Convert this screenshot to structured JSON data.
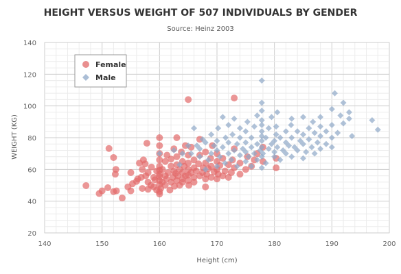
{
  "chart_data": {
    "type": "scatter",
    "title": "HEIGHT VERSUS WEIGHT OF 507 INDIVIDUALS BY GENDER",
    "subtitle": "Source: Heinz 2003",
    "xlabel": "Height (cm)",
    "ylabel": "WEIGHT (KG)",
    "xlim": [
      140,
      200
    ],
    "ylim": [
      20,
      140
    ],
    "x_ticks": [
      140,
      150,
      160,
      170,
      180,
      190,
      200
    ],
    "y_ticks": [
      20,
      40,
      60,
      80,
      100,
      120,
      140
    ],
    "grid": true,
    "legend_position": "top-left",
    "colors": {
      "Female": "#e26a6a",
      "Male": "#8fa8c8"
    },
    "series": [
      {
        "name": "Female",
        "marker": "circle",
        "points": [
          [
            147.2,
            49.8
          ],
          [
            149.5,
            44.8
          ],
          [
            150.0,
            46.5
          ],
          [
            151.0,
            48.5
          ],
          [
            151.2,
            73.2
          ],
          [
            152.0,
            46.0
          ],
          [
            152.3,
            57.0
          ],
          [
            152.4,
            60.0
          ],
          [
            152.0,
            67.5
          ],
          [
            152.5,
            46.5
          ],
          [
            153.5,
            42.0
          ],
          [
            154.5,
            49.0
          ],
          [
            155.0,
            46.5
          ],
          [
            155.0,
            58.0
          ],
          [
            155.3,
            51.0
          ],
          [
            156.0,
            52.5
          ],
          [
            156.2,
            54.0
          ],
          [
            156.5,
            64.0
          ],
          [
            156.8,
            55.0
          ],
          [
            157.0,
            60.0
          ],
          [
            157.0,
            48.0
          ],
          [
            157.2,
            66.0
          ],
          [
            157.5,
            63.5
          ],
          [
            157.6,
            56.0
          ],
          [
            157.8,
            76.5
          ],
          [
            158.0,
            47.5
          ],
          [
            158.0,
            52.0
          ],
          [
            158.0,
            58.0
          ],
          [
            158.5,
            50.0
          ],
          [
            158.6,
            61.5
          ],
          [
            159.0,
            55.0
          ],
          [
            159.0,
            49.0
          ],
          [
            159.2,
            53.5
          ],
          [
            159.5,
            59.0
          ],
          [
            159.5,
            47.0
          ],
          [
            160.0,
            46.0
          ],
          [
            160.0,
            50.5
          ],
          [
            160.0,
            53.0
          ],
          [
            160.0,
            55.5
          ],
          [
            160.0,
            57.0
          ],
          [
            160.0,
            59.5
          ],
          [
            160.0,
            62.0
          ],
          [
            160.0,
            66.0
          ],
          [
            160.0,
            44.5
          ],
          [
            160.0,
            70.0
          ],
          [
            160.0,
            75.0
          ],
          [
            160.0,
            80.0
          ],
          [
            160.2,
            48.0
          ],
          [
            160.5,
            52.0
          ],
          [
            160.5,
            60.0
          ],
          [
            161.0,
            56.0
          ],
          [
            161.0,
            65.0
          ],
          [
            161.0,
            50.0
          ],
          [
            161.2,
            54.0
          ],
          [
            161.3,
            69.0
          ],
          [
            161.5,
            58.0
          ],
          [
            161.8,
            47.0
          ],
          [
            162.0,
            52.0
          ],
          [
            162.0,
            62.0
          ],
          [
            162.0,
            66.5
          ],
          [
            162.3,
            55.0
          ],
          [
            162.5,
            59.0
          ],
          [
            162.5,
            73.0
          ],
          [
            162.6,
            49.5
          ],
          [
            162.8,
            57.5
          ],
          [
            163.0,
            53.0
          ],
          [
            163.0,
            63.0
          ],
          [
            163.0,
            68.0
          ],
          [
            163.0,
            80.0
          ],
          [
            163.2,
            56.0
          ],
          [
            163.5,
            50.0
          ],
          [
            163.5,
            60.0
          ],
          [
            163.8,
            71.0
          ],
          [
            164.0,
            54.0
          ],
          [
            164.0,
            58.0
          ],
          [
            164.0,
            65.0
          ],
          [
            164.0,
            52.0
          ],
          [
            164.3,
            62.0
          ],
          [
            164.5,
            56.0
          ],
          [
            164.5,
            75.0
          ],
          [
            165.0,
            53.0
          ],
          [
            165.0,
            56.5
          ],
          [
            165.0,
            60.0
          ],
          [
            165.0,
            64.0
          ],
          [
            165.0,
            69.0
          ],
          [
            165.0,
            104.0
          ],
          [
            165.1,
            50.0
          ],
          [
            165.5,
            58.0
          ],
          [
            165.5,
            74.0
          ],
          [
            166.0,
            55.0
          ],
          [
            166.0,
            61.0
          ],
          [
            166.0,
            66.0
          ],
          [
            166.0,
            52.0
          ],
          [
            166.4,
            59.0
          ],
          [
            166.8,
            63.5
          ],
          [
            167.0,
            56.0
          ],
          [
            167.0,
            69.0
          ],
          [
            167.0,
            79.0
          ],
          [
            167.5,
            58.0
          ],
          [
            167.6,
            61.0
          ],
          [
            168.0,
            54.0
          ],
          [
            168.0,
            64.0
          ],
          [
            168.0,
            71.0
          ],
          [
            168.0,
            49.0
          ],
          [
            168.2,
            57.0
          ],
          [
            168.5,
            60.5
          ],
          [
            168.9,
            67.0
          ],
          [
            169.0,
            55.0
          ],
          [
            169.0,
            62.0
          ],
          [
            169.2,
            75.0
          ],
          [
            169.5,
            58.5
          ],
          [
            170.0,
            54.0
          ],
          [
            170.0,
            60.0
          ],
          [
            170.0,
            65.0
          ],
          [
            170.0,
            70.0
          ],
          [
            170.2,
            57.0
          ],
          [
            170.5,
            62.5
          ],
          [
            171.0,
            56.0
          ],
          [
            171.0,
            67.0
          ],
          [
            171.4,
            59.0
          ],
          [
            172.0,
            55.0
          ],
          [
            172.0,
            63.0
          ],
          [
            172.5,
            58.0
          ],
          [
            172.7,
            66.0
          ],
          [
            173.0,
            73.0
          ],
          [
            173.0,
            61.0
          ],
          [
            173.0,
            105.0
          ],
          [
            174.0,
            57.0
          ],
          [
            174.0,
            64.0
          ],
          [
            175.0,
            60.0
          ],
          [
            175.3,
            68.0
          ],
          [
            176.0,
            62.0
          ],
          [
            176.5,
            66.0
          ],
          [
            177.0,
            70.0
          ],
          [
            178.0,
            74.0
          ],
          [
            178.0,
            65.0
          ],
          [
            180.3,
            67.0
          ],
          [
            180.3,
            61.0
          ]
        ]
      },
      {
        "name": "Male",
        "marker": "diamond",
        "points": [
          [
            160.0,
            70.0
          ],
          [
            162.5,
            72.0
          ],
          [
            163.5,
            63.0
          ],
          [
            164.0,
            70.0
          ],
          [
            165.0,
            75.0
          ],
          [
            165.5,
            70.0
          ],
          [
            166.0,
            86.0
          ],
          [
            166.5,
            75.0
          ],
          [
            167.0,
            68.0
          ],
          [
            167.0,
            73.0
          ],
          [
            167.5,
            79.0
          ],
          [
            168.0,
            60.0
          ],
          [
            168.0,
            77.0
          ],
          [
            168.5,
            66.0
          ],
          [
            169.0,
            70.0
          ],
          [
            169.0,
            82.0
          ],
          [
            169.5,
            75.0
          ],
          [
            170.0,
            62.0
          ],
          [
            170.0,
            72.0
          ],
          [
            170.0,
            78.0
          ],
          [
            170.2,
            86.0
          ],
          [
            170.5,
            68.0
          ],
          [
            171.0,
            74.0
          ],
          [
            171.0,
            93.0
          ],
          [
            171.4,
            64.0
          ],
          [
            171.5,
            80.0
          ],
          [
            172.0,
            70.0
          ],
          [
            172.0,
            77.0
          ],
          [
            172.0,
            88.0
          ],
          [
            172.5,
            66.0
          ],
          [
            172.7,
            82.0
          ],
          [
            173.0,
            72.0
          ],
          [
            173.0,
            92.0
          ],
          [
            173.5,
            62.0
          ],
          [
            173.5,
            76.0
          ],
          [
            174.0,
            69.0
          ],
          [
            174.0,
            80.0
          ],
          [
            174.0,
            86.0
          ],
          [
            174.5,
            73.0
          ],
          [
            175.0,
            65.0
          ],
          [
            175.0,
            71.0
          ],
          [
            175.0,
            77.0
          ],
          [
            175.0,
            84.0
          ],
          [
            175.3,
            90.0
          ],
          [
            175.5,
            68.0
          ],
          [
            176.0,
            62.0
          ],
          [
            176.0,
            74.0
          ],
          [
            176.0,
            80.0
          ],
          [
            176.5,
            70.0
          ],
          [
            176.5,
            87.0
          ],
          [
            177.0,
            66.0
          ],
          [
            177.0,
            76.0
          ],
          [
            177.0,
            94.0
          ],
          [
            177.5,
            72.0
          ],
          [
            177.8,
            61.0
          ],
          [
            177.8,
            68.0
          ],
          [
            177.8,
            74.0
          ],
          [
            177.8,
            78.0
          ],
          [
            177.8,
            81.0
          ],
          [
            177.8,
            84.0
          ],
          [
            177.8,
            88.0
          ],
          [
            177.8,
            91.0
          ],
          [
            177.8,
            97.0
          ],
          [
            177.8,
            102.0
          ],
          [
            177.8,
            116.0
          ],
          [
            178.0,
            70.0
          ],
          [
            178.5,
            64.0
          ],
          [
            178.5,
            80.0
          ],
          [
            179.0,
            73.0
          ],
          [
            179.0,
            86.0
          ],
          [
            179.5,
            76.0
          ],
          [
            179.5,
            93.0
          ],
          [
            180.0,
            68.0
          ],
          [
            180.0,
            71.0
          ],
          [
            180.0,
            78.0
          ],
          [
            180.3,
            82.0
          ],
          [
            180.3,
            87.0
          ],
          [
            180.5,
            74.0
          ],
          [
            180.5,
            96.0
          ],
          [
            181.0,
            66.0
          ],
          [
            181.0,
            80.0
          ],
          [
            181.5,
            72.0
          ],
          [
            182.0,
            70.0
          ],
          [
            182.0,
            77.0
          ],
          [
            182.0,
            84.0
          ],
          [
            182.5,
            75.0
          ],
          [
            182.9,
            88.0
          ],
          [
            183.0,
            68.0
          ],
          [
            183.0,
            80.0
          ],
          [
            183.0,
            92.0
          ],
          [
            183.5,
            74.0
          ],
          [
            184.0,
            72.0
          ],
          [
            184.0,
            84.0
          ],
          [
            184.5,
            78.0
          ],
          [
            185.0,
            67.0
          ],
          [
            185.0,
            76.0
          ],
          [
            185.0,
            82.0
          ],
          [
            185.0,
            93.0
          ],
          [
            185.5,
            71.0
          ],
          [
            186.0,
            79.0
          ],
          [
            186.0,
            86.0
          ],
          [
            186.5,
            74.0
          ],
          [
            186.7,
            90.0
          ],
          [
            187.0,
            70.0
          ],
          [
            187.0,
            83.0
          ],
          [
            187.5,
            77.0
          ],
          [
            188.0,
            73.0
          ],
          [
            188.0,
            81.0
          ],
          [
            188.0,
            87.0
          ],
          [
            188.0,
            93.0
          ],
          [
            189.0,
            76.0
          ],
          [
            189.0,
            84.0
          ],
          [
            190.0,
            74.0
          ],
          [
            190.0,
            80.0
          ],
          [
            190.0,
            88.0
          ],
          [
            190.0,
            98.0
          ],
          [
            190.5,
            108.0
          ],
          [
            191.0,
            83.0
          ],
          [
            191.5,
            94.0
          ],
          [
            192.0,
            89.0
          ],
          [
            192.0,
            102.0
          ],
          [
            193.0,
            92.0
          ],
          [
            193.0,
            96.0
          ],
          [
            193.5,
            81.0
          ],
          [
            197.0,
            91.0
          ],
          [
            198.0,
            85.0
          ]
        ]
      }
    ]
  }
}
